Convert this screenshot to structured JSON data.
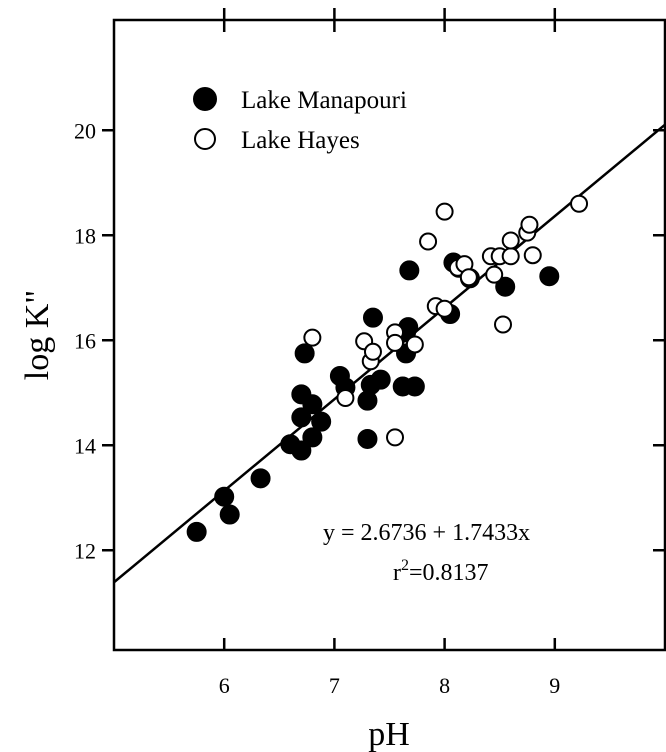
{
  "chart_data": {
    "type": "scatter",
    "title": "",
    "xlabel": "pH",
    "ylabel": "log K\"",
    "xlim": [
      5,
      10
    ],
    "ylim": [
      10.1,
      22.1
    ],
    "xticks": [
      6,
      7,
      8,
      9
    ],
    "yticks": [
      12,
      14,
      16,
      18,
      20
    ],
    "grid": false,
    "legend_position": "top-left",
    "series": [
      {
        "name": "Lake Manapouri",
        "marker": "filled-circle",
        "color": "#000000",
        "points": [
          [
            5.75,
            12.35
          ],
          [
            6.0,
            13.02
          ],
          [
            6.05,
            12.68
          ],
          [
            6.33,
            13.37
          ],
          [
            6.6,
            14.02
          ],
          [
            6.7,
            14.97
          ],
          [
            6.7,
            14.53
          ],
          [
            6.7,
            13.9
          ],
          [
            6.73,
            15.75
          ],
          [
            6.8,
            14.78
          ],
          [
            6.8,
            14.15
          ],
          [
            6.88,
            14.45
          ],
          [
            7.05,
            15.32
          ],
          [
            7.1,
            15.1
          ],
          [
            7.3,
            14.12
          ],
          [
            7.3,
            14.85
          ],
          [
            7.33,
            15.15
          ],
          [
            7.35,
            16.43
          ],
          [
            7.42,
            15.25
          ],
          [
            7.62,
            15.12
          ],
          [
            7.65,
            15.75
          ],
          [
            7.65,
            16.15
          ],
          [
            7.67,
            16.25
          ],
          [
            7.68,
            17.33
          ],
          [
            7.73,
            15.12
          ],
          [
            8.05,
            16.5
          ],
          [
            8.08,
            17.48
          ],
          [
            8.13,
            17.38
          ],
          [
            8.23,
            17.18
          ],
          [
            8.55,
            17.02
          ],
          [
            8.95,
            17.22
          ]
        ]
      },
      {
        "name": "Lake Hayes",
        "marker": "open-circle",
        "color": "#000000",
        "points": [
          [
            6.8,
            16.05
          ],
          [
            7.1,
            14.9
          ],
          [
            7.27,
            15.98
          ],
          [
            7.33,
            15.6
          ],
          [
            7.35,
            15.78
          ],
          [
            7.55,
            16.15
          ],
          [
            7.55,
            15.95
          ],
          [
            7.55,
            14.15
          ],
          [
            7.73,
            15.92
          ],
          [
            7.85,
            17.88
          ],
          [
            7.92,
            16.65
          ],
          [
            8.0,
            16.6
          ],
          [
            8.0,
            18.45
          ],
          [
            8.12,
            17.38
          ],
          [
            8.18,
            17.45
          ],
          [
            8.22,
            17.2
          ],
          [
            8.42,
            17.6
          ],
          [
            8.45,
            17.25
          ],
          [
            8.5,
            17.6
          ],
          [
            8.53,
            16.3
          ],
          [
            8.6,
            17.6
          ],
          [
            8.6,
            17.9
          ],
          [
            8.75,
            18.05
          ],
          [
            8.77,
            18.2
          ],
          [
            8.8,
            17.62
          ],
          [
            9.22,
            18.6
          ]
        ]
      }
    ],
    "regression": {
      "intercept": 2.6736,
      "slope": 1.7433
    },
    "annotations": {
      "equation": "y = 2.6736 + 1.7433x",
      "r2_base": "r",
      "r2_sup": "2",
      "r2_value": "=0.8137"
    }
  }
}
